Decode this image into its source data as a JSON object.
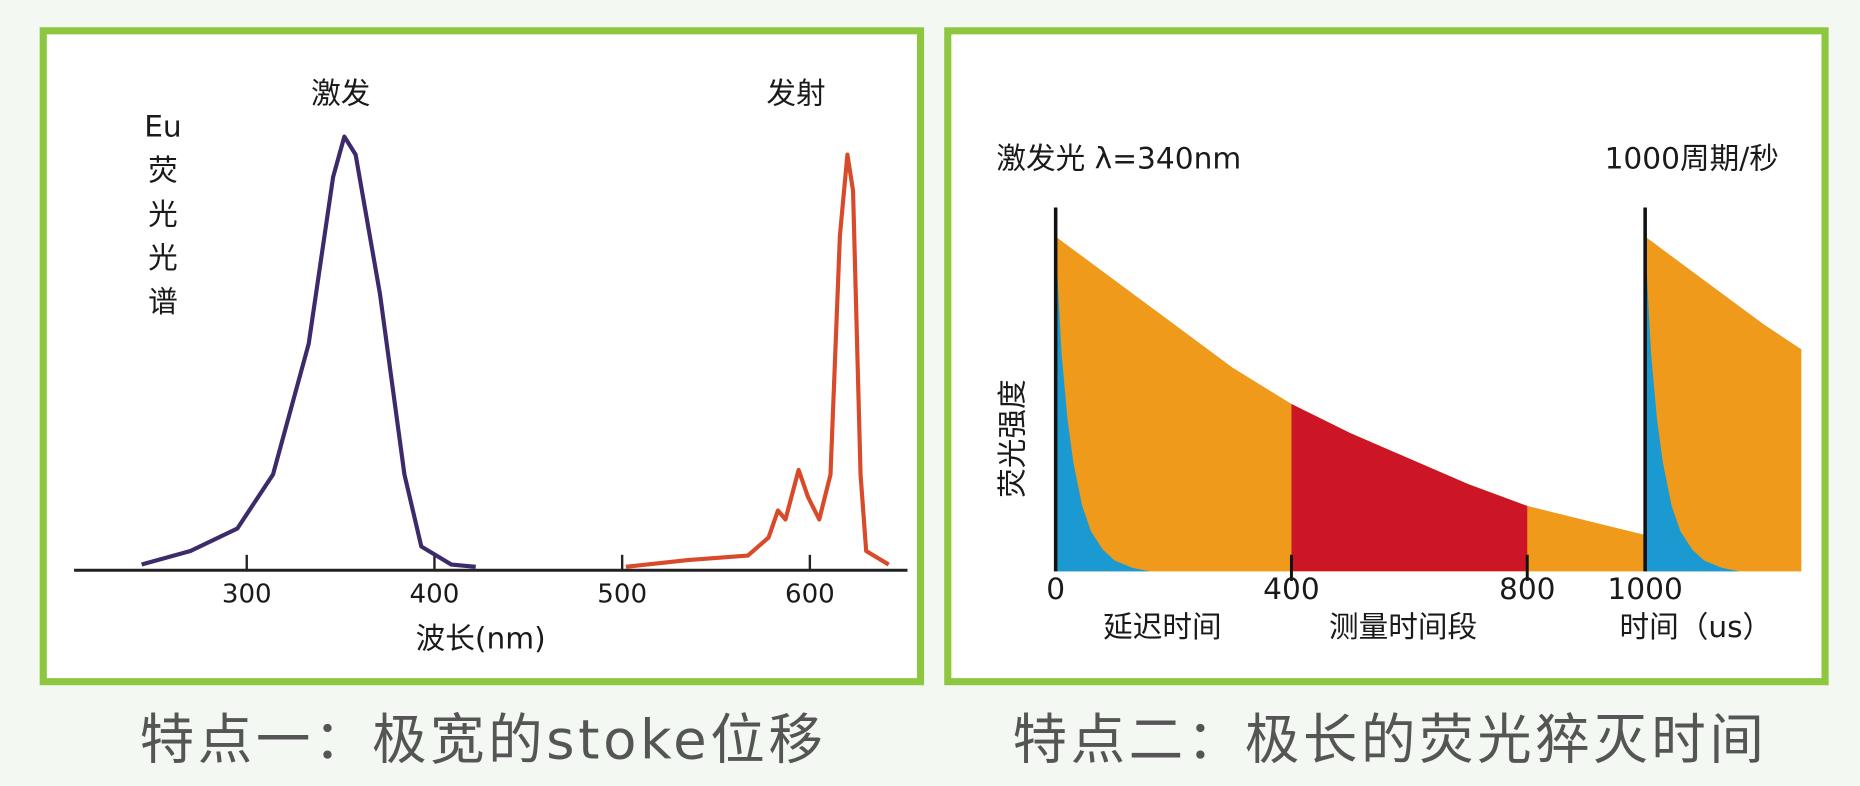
{
  "chart_data": [
    {
      "type": "line",
      "xlabel": "波长(nm)",
      "ylabel_lines": [
        "Eu",
        "荧",
        "光",
        "光",
        "谱"
      ],
      "annotations": [
        "激发",
        "发射"
      ],
      "caption": "特点一：极宽的stoke位移",
      "xlim": [
        208,
        652
      ],
      "ylim": [
        0,
        100
      ],
      "xticks": [
        300,
        400,
        500,
        600
      ],
      "series": [
        {
          "color": "#3d2a6b",
          "x": [
            244,
            270,
            295,
            314,
            333,
            346,
            352,
            358,
            371,
            384,
            393,
            409,
            422
          ],
          "values": [
            1,
            4,
            9,
            21,
            50,
            87,
            96,
            92,
            61,
            21,
            5,
            1,
            0.5
          ]
        },
        {
          "color": "#d84a2a",
          "x": [
            502,
            535,
            567,
            578,
            583,
            587,
            594,
            599,
            605,
            611,
            616,
            620,
            623,
            627,
            630,
            642
          ],
          "values": [
            0.5,
            2,
            3,
            7,
            13,
            11,
            22,
            16,
            11,
            21,
            74,
            92,
            84,
            21,
            4,
            1
          ]
        }
      ]
    },
    {
      "type": "area",
      "ylabel": "荧光强度",
      "annotations": [
        "激发光 λ=340nm",
        "1000周期/秒"
      ],
      "xlabels": [
        "延迟时间",
        "测量时间段",
        "时间（us）"
      ],
      "caption": "特点二：极长的荧光猝灭时间",
      "xlim": [
        0,
        1265
      ],
      "ylim": [
        0,
        100
      ],
      "xticks": [
        0,
        400,
        800,
        1000
      ],
      "highlight_color": "#cc1626",
      "series": [
        {
          "color": "#ef9a1a",
          "x": [
            0,
            100,
            200,
            300,
            400,
            500,
            600,
            700,
            800,
            900,
            1000,
            1000,
            1000,
            1100,
            1200,
            1265
          ],
          "values": [
            92,
            80,
            68,
            56,
            46,
            38,
            31,
            24,
            18,
            14,
            10,
            null,
            92,
            80,
            68,
            61
          ]
        },
        {
          "color": "#1b9ad2",
          "x": [
            0,
            5,
            10,
            20,
            30,
            45,
            60,
            80,
            100,
            130,
            160,
            1000,
            1000,
            1005,
            1010,
            1020,
            1030,
            1045,
            1060,
            1080,
            1100,
            1130,
            1160
          ],
          "values": [
            92,
            75,
            60,
            42,
            30,
            18,
            11,
            6,
            3,
            1,
            0,
            null,
            92,
            75,
            60,
            42,
            30,
            18,
            11,
            6,
            3,
            1,
            0
          ]
        }
      ]
    }
  ]
}
